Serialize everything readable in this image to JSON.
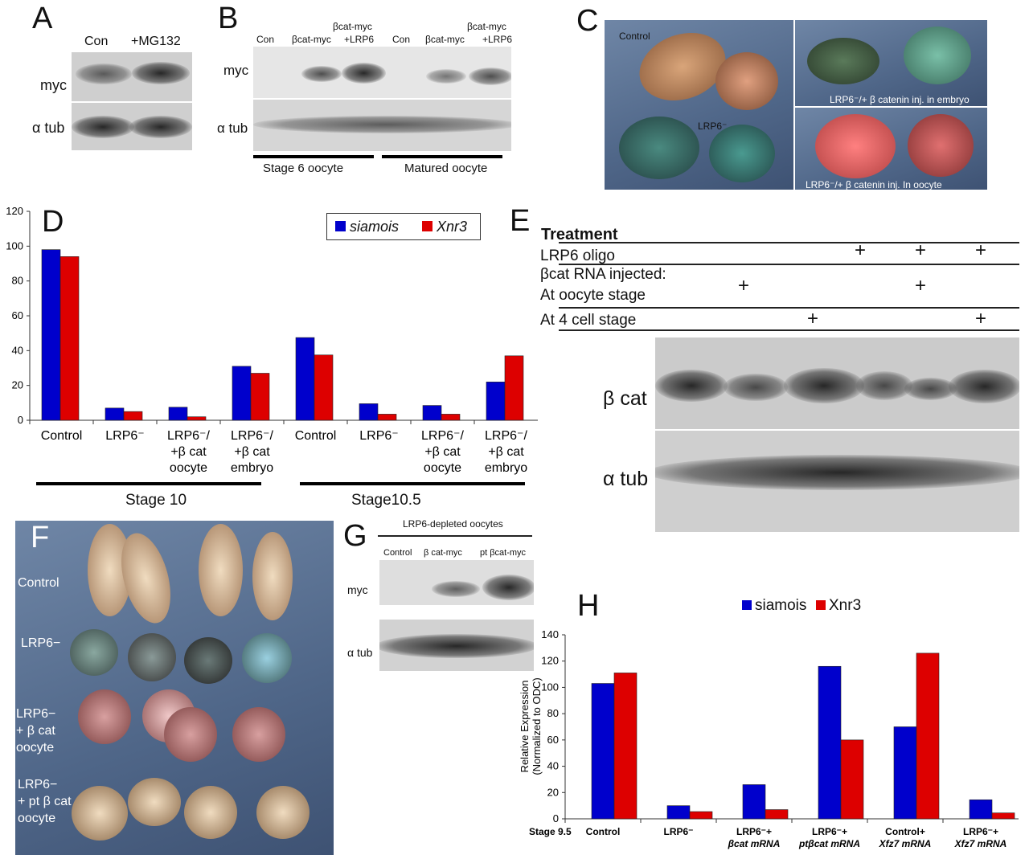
{
  "panelA": {
    "letter": "A",
    "cols": [
      "Con",
      "+MG132"
    ],
    "rows": [
      "myc",
      "α tub"
    ]
  },
  "panelB": {
    "letter": "B",
    "cols": [
      "Con",
      "βcat-myc",
      "βcat-myc",
      "+LRP6",
      "Con",
      "βcat-myc",
      "βcat-myc",
      "+LRP6"
    ],
    "rows": [
      "myc",
      "α tub"
    ],
    "groups": [
      "Stage 6 oocyte",
      "Matured oocyte"
    ]
  },
  "panelC": {
    "letter": "C",
    "labels": [
      "Control",
      "LRP6⁻",
      "LRP6⁻/+ β catenin inj. in embryo",
      "LRP6⁻/+ β catenin inj. In  oocyte"
    ]
  },
  "panelE": {
    "letter": "E",
    "header": "Treatment",
    "rows": [
      {
        "label": "LRP6 oligo",
        "marks": [
          false,
          false,
          true,
          true,
          true
        ]
      },
      {
        "label": "βcat RNA injected:",
        "marks": [
          false,
          false,
          false,
          false,
          false
        ]
      },
      {
        "label": "At oocyte stage",
        "marks": [
          true,
          false,
          false,
          true,
          false
        ]
      },
      {
        "label": "At 4 cell stage",
        "marks": [
          false,
          true,
          false,
          false,
          true
        ]
      }
    ],
    "mark": "+",
    "blot_rows": [
      "β cat",
      "α tub"
    ]
  },
  "panelF": {
    "letter": "F",
    "labels": [
      "Control",
      "LRP6−",
      "LRP6−\n+ β cat\noocyte",
      "LRP6−\n+ pt β cat\noocyte"
    ]
  },
  "panelG": {
    "letter": "G",
    "title": "LRP6-depleted oocytes",
    "cols": [
      "Control",
      "β cat-myc",
      "pt βcat-myc"
    ],
    "rows": [
      "myc",
      "α tub"
    ]
  },
  "colors": {
    "siamois": "#0000cc",
    "Xnr3": "#dd0000"
  },
  "chart_data": [
    {
      "type": "bar",
      "panel": "D",
      "letter": "D",
      "legend": "top-right",
      "ylim": [
        0,
        120
      ],
      "yticks": [
        0,
        20,
        40,
        60,
        80,
        100,
        120
      ],
      "categories": [
        [
          "Control"
        ],
        [
          "LRP6⁻"
        ],
        [
          "LRP6⁻/",
          "+β cat",
          "oocyte"
        ],
        [
          "LRP6⁻/",
          "+β cat",
          "embryo"
        ],
        [
          "Control"
        ],
        [
          "LRP6⁻"
        ],
        [
          "LRP6⁻/",
          "+β cat",
          "oocyte"
        ],
        [
          "LRP6⁻/",
          "+β cat",
          "embryo"
        ]
      ],
      "groups": [
        "Stage 10",
        "Stage10.5"
      ],
      "series": [
        {
          "name": "siamois",
          "values": [
            98,
            7,
            7.5,
            31,
            47.5,
            9.5,
            8.5,
            22
          ]
        },
        {
          "name": "Xnr3",
          "values": [
            94,
            5,
            2,
            27,
            37.5,
            3.5,
            3.5,
            37
          ]
        }
      ]
    },
    {
      "type": "bar",
      "panel": "H",
      "letter": "H",
      "legend": "top",
      "ylim": [
        0,
        140
      ],
      "yticks": [
        0,
        20,
        40,
        60,
        80,
        100,
        120,
        140
      ],
      "ylabel": [
        "Relative Expression",
        "(Normalized to ODC)"
      ],
      "xprefix": "Stage 9.5",
      "categories": [
        [
          "Control",
          ""
        ],
        [
          "LRP6⁻",
          ""
        ],
        [
          "LRP6⁻+",
          "βcat mRNA"
        ],
        [
          "LRP6⁻+",
          "ptβcat mRNA"
        ],
        [
          "Control+",
          "Xfz7 mRNA"
        ],
        [
          "LRP6⁻+",
          "Xfz7 mRNA"
        ]
      ],
      "series": [
        {
          "name": "siamois",
          "values": [
            103,
            10,
            26,
            116,
            70,
            14.5
          ]
        },
        {
          "name": "Xnr3",
          "values": [
            111,
            5.5,
            7,
            60,
            126,
            4.5
          ]
        }
      ]
    }
  ]
}
